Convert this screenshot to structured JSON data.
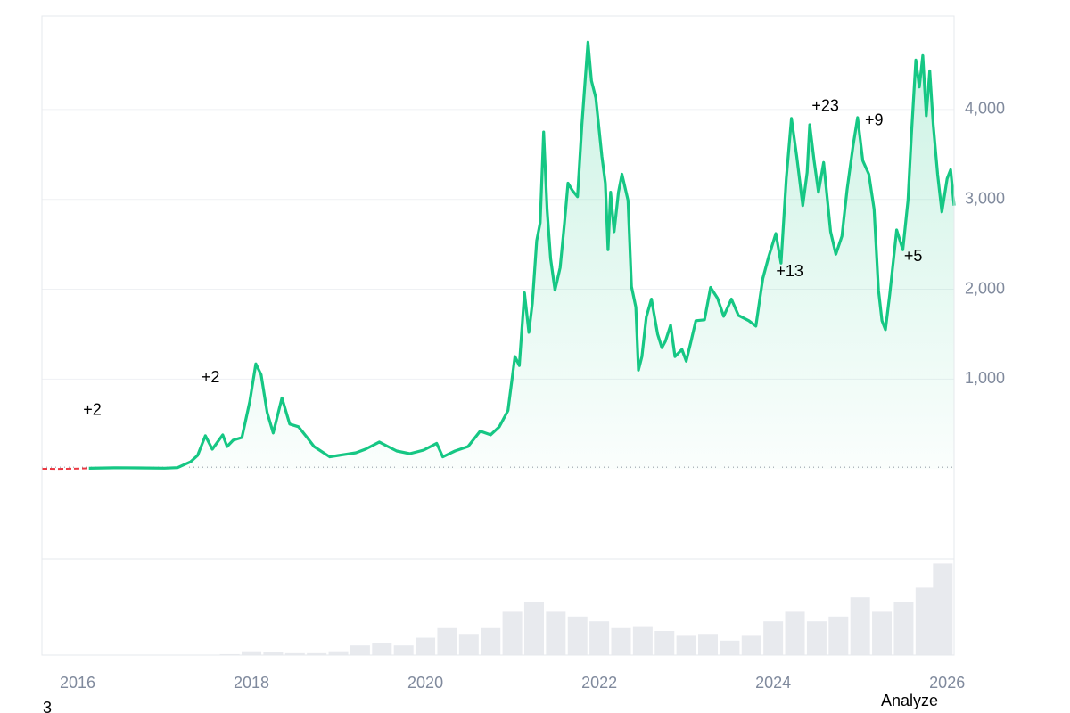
{
  "chart_data": {
    "type": "line",
    "xlim": [
      2015.59,
      2026.08
    ],
    "xticks": [
      2016,
      2018,
      2020,
      2022,
      2024,
      2026
    ],
    "ylim": [
      -1000,
      5040
    ],
    "yticks": [
      {
        "value": 1000,
        "label": "1,000"
      },
      {
        "value": 2000,
        "label": "2,000"
      },
      {
        "value": 3000,
        "label": "3,000"
      },
      {
        "value": 4000,
        "label": "4,000"
      }
    ],
    "grid": true,
    "series": [
      {
        "color": "#ea3943",
        "x": [
          2015.59,
          2015.75,
          2015.95,
          2016.13
        ],
        "values": [
          2,
          1,
          3,
          8
        ]
      },
      {
        "color": "#16c784",
        "x": [
          2016.13,
          2016.45,
          2016.7,
          2017.0,
          2017.15,
          2017.3,
          2017.38,
          2017.47,
          2017.55,
          2017.67,
          2017.72,
          2017.79,
          2017.89,
          2017.98,
          2018.05,
          2018.11,
          2018.18,
          2018.25,
          2018.35,
          2018.44,
          2018.54,
          2018.64,
          2018.72,
          2018.9,
          2019.0,
          2019.2,
          2019.31,
          2019.47,
          2019.57,
          2019.67,
          2019.82,
          2019.98,
          2020.13,
          2020.2,
          2020.34,
          2020.49,
          2020.63,
          2020.75,
          2020.85,
          2020.95,
          2021.03,
          2021.08,
          2021.14,
          2021.19,
          2021.23,
          2021.28,
          2021.32,
          2021.36,
          2021.4,
          2021.44,
          2021.49,
          2021.55,
          2021.6,
          2021.64,
          2021.69,
          2021.75,
          2021.8,
          2021.87,
          2021.91,
          2021.96,
          2022.03,
          2022.07,
          2022.1,
          2022.13,
          2022.17,
          2022.22,
          2022.26,
          2022.33,
          2022.37,
          2022.42,
          2022.45,
          2022.49,
          2022.54,
          2022.6,
          2022.67,
          2022.72,
          2022.76,
          2022.82,
          2022.87,
          2022.95,
          2023.0,
          2023.05,
          2023.11,
          2023.21,
          2023.28,
          2023.36,
          2023.43,
          2023.52,
          2023.6,
          2023.72,
          2023.8,
          2023.88,
          2023.95,
          2024.03,
          2024.09,
          2024.15,
          2024.21,
          2024.27,
          2024.34,
          2024.39,
          2024.42,
          2024.47,
          2024.52,
          2024.58,
          2024.66,
          2024.72,
          2024.79,
          2024.85,
          2024.92,
          2024.97,
          2025.03,
          2025.1,
          2025.16,
          2025.21,
          2025.25,
          2025.29,
          2025.34,
          2025.42,
          2025.49,
          2025.55,
          2025.59,
          2025.64,
          2025.68,
          2025.72,
          2025.76,
          2025.8,
          2025.84,
          2025.89,
          2025.94,
          2026.0,
          2026.04,
          2026.08
        ],
        "values": [
          8,
          14,
          12,
          9,
          15,
          80,
          150,
          370,
          220,
          380,
          250,
          320,
          350,
          750,
          1170,
          1050,
          630,
          400,
          790,
          500,
          470,
          350,
          250,
          135,
          150,
          180,
          220,
          300,
          250,
          200,
          170,
          210,
          285,
          135,
          200,
          250,
          420,
          380,
          470,
          650,
          1250,
          1150,
          1960,
          1520,
          1840,
          2540,
          2740,
          3750,
          2880,
          2340,
          1990,
          2240,
          2740,
          3180,
          3100,
          3030,
          3830,
          4750,
          4320,
          4130,
          3480,
          3180,
          2440,
          3080,
          2640,
          3080,
          3280,
          2990,
          2030,
          1800,
          1100,
          1250,
          1690,
          1890,
          1500,
          1350,
          1420,
          1600,
          1250,
          1330,
          1200,
          1400,
          1650,
          1660,
          2020,
          1900,
          1700,
          1890,
          1710,
          1650,
          1590,
          2120,
          2370,
          2620,
          2290,
          3230,
          3900,
          3480,
          2930,
          3300,
          3830,
          3430,
          3080,
          3410,
          2640,
          2390,
          2590,
          3110,
          3610,
          3910,
          3430,
          3280,
          2890,
          1990,
          1650,
          1550,
          1940,
          2660,
          2440,
          2990,
          3730,
          4550,
          4250,
          4600,
          3930,
          4430,
          3830,
          3280,
          2860,
          3230,
          3330,
          2930
        ]
      }
    ],
    "volume": {
      "color": "#e8eaee",
      "ylim": [
        0,
        100
      ],
      "x": [
        2017.75,
        2018,
        2018.25,
        2018.5,
        2018.75,
        2019,
        2019.25,
        2019.5,
        2019.75,
        2020,
        2020.25,
        2020.5,
        2020.75,
        2021,
        2021.25,
        2021.5,
        2021.75,
        2022,
        2022.25,
        2022.5,
        2022.75,
        2023,
        2023.25,
        2023.5,
        2023.75,
        2024,
        2024.25,
        2024.5,
        2024.75,
        2025,
        2025.25,
        2025.5,
        2025.75,
        2025.95
      ],
      "values": [
        1,
        4,
        3,
        2,
        2,
        4,
        10,
        12,
        10,
        18,
        28,
        22,
        28,
        45,
        55,
        45,
        40,
        35,
        28,
        30,
        25,
        20,
        22,
        15,
        20,
        35,
        45,
        35,
        40,
        60,
        45,
        55,
        70,
        95
      ]
    },
    "annotations": [
      {
        "label": "+2",
        "x": 2016.17,
        "y": 650
      },
      {
        "label": "+2",
        "x": 2017.53,
        "y": 1010
      },
      {
        "label": "+13",
        "x": 2024.19,
        "y": 2190
      },
      {
        "label": "+23",
        "x": 2024.6,
        "y": 4030
      },
      {
        "label": "+9",
        "x": 2025.16,
        "y": 3870
      },
      {
        "label": "+5",
        "x": 2025.61,
        "y": 2360
      }
    ],
    "footer_left": "3",
    "footer_right": "Analyze"
  }
}
